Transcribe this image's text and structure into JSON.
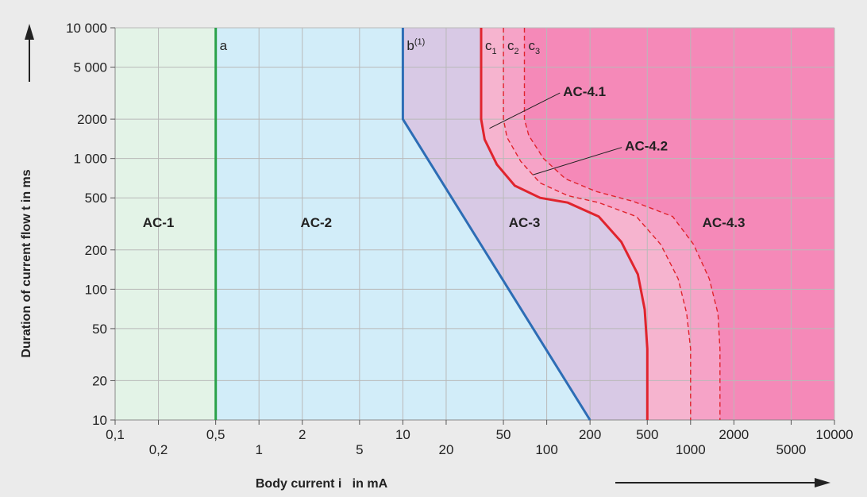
{
  "chart_data": {
    "type": "area",
    "xlabel": "Body current i   in mA",
    "ylabel": "Duration of current flow t in ms",
    "x_scale": "log",
    "y_scale": "log",
    "xlim": [
      0.1,
      10000
    ],
    "ylim": [
      10,
      10000
    ],
    "grid": true,
    "x_ticks": [
      0.1,
      0.2,
      0.5,
      1,
      2,
      5,
      10,
      20,
      50,
      100,
      200,
      500,
      1000,
      2000,
      5000,
      10000
    ],
    "x_tick_labels": [
      "0,1",
      "0,2",
      "0,5",
      "1",
      "2",
      "5",
      "10",
      "20",
      "50",
      "100",
      "200",
      "500",
      "1000",
      "2000",
      "5000",
      "10000"
    ],
    "y_ticks": [
      10,
      20,
      50,
      100,
      200,
      500,
      1000,
      2000,
      5000,
      10000
    ],
    "y_tick_labels": [
      "10",
      "20",
      "50",
      "100",
      "200",
      "500",
      "1 000",
      "2000",
      "5 000",
      "10 000"
    ],
    "zones": [
      {
        "label": "AC-1",
        "x": 0.2,
        "y": 300,
        "color": "#e3f3e7"
      },
      {
        "label": "AC-2",
        "x": 2.5,
        "y": 300,
        "color": "#d2edf9"
      },
      {
        "label": "AC-3",
        "x": 70,
        "y": 300,
        "color": "#d8c9e5"
      },
      {
        "label": "AC-4.1",
        "color": "#f6b4cf"
      },
      {
        "label": "AC-4.2",
        "color": "#f6a3c7"
      },
      {
        "label": "AC-4.3",
        "x": 1700,
        "y": 300,
        "color": "#f589b8"
      }
    ],
    "series": [
      {
        "name": "a",
        "color": "#2aa14a",
        "style": "solid",
        "points": [
          [
            0.5,
            10
          ],
          [
            0.5,
            10000
          ]
        ]
      },
      {
        "name": "b",
        "name_sup": "(1)",
        "color": "#2d6db5",
        "style": "solid",
        "points": [
          [
            10,
            10000
          ],
          [
            10,
            2000
          ],
          [
            200,
            10
          ]
        ]
      },
      {
        "name": "c",
        "name_sub": "1",
        "color": "#e0242d",
        "style": "solid",
        "points": [
          [
            35,
            10000
          ],
          [
            35,
            2000
          ],
          [
            37,
            1400
          ],
          [
            45,
            900
          ],
          [
            60,
            620
          ],
          [
            90,
            500
          ],
          [
            140,
            460
          ],
          [
            230,
            360
          ],
          [
            330,
            230
          ],
          [
            430,
            130
          ],
          [
            480,
            70
          ],
          [
            500,
            35
          ],
          [
            500,
            10
          ]
        ]
      },
      {
        "name": "c",
        "name_sub": "2",
        "color": "#e0242d",
        "style": "dashed",
        "points": [
          [
            50,
            10000
          ],
          [
            50,
            2000
          ],
          [
            53,
            1450
          ],
          [
            66,
            950
          ],
          [
            90,
            650
          ],
          [
            140,
            520
          ],
          [
            230,
            460
          ],
          [
            420,
            360
          ],
          [
            620,
            220
          ],
          [
            820,
            120
          ],
          [
            940,
            65
          ],
          [
            1000,
            35
          ],
          [
            1000,
            10
          ]
        ]
      },
      {
        "name": "c",
        "name_sub": "3",
        "color": "#e0242d",
        "style": "dashed",
        "points": [
          [
            70,
            10000
          ],
          [
            70,
            2000
          ],
          [
            75,
            1500
          ],
          [
            95,
            1000
          ],
          [
            135,
            700
          ],
          [
            220,
            560
          ],
          [
            400,
            470
          ],
          [
            750,
            360
          ],
          [
            1050,
            220
          ],
          [
            1350,
            120
          ],
          [
            1550,
            65
          ],
          [
            1600,
            35
          ],
          [
            1600,
            10
          ]
        ]
      }
    ],
    "annotations": [
      {
        "text": "AC-4.1",
        "label_at": [
          130,
          3000
        ],
        "points_to": [
          40,
          1700
        ]
      },
      {
        "text": "AC-4.2",
        "label_at": [
          350,
          1150
        ],
        "points_to": [
          80,
          750
        ]
      }
    ]
  }
}
